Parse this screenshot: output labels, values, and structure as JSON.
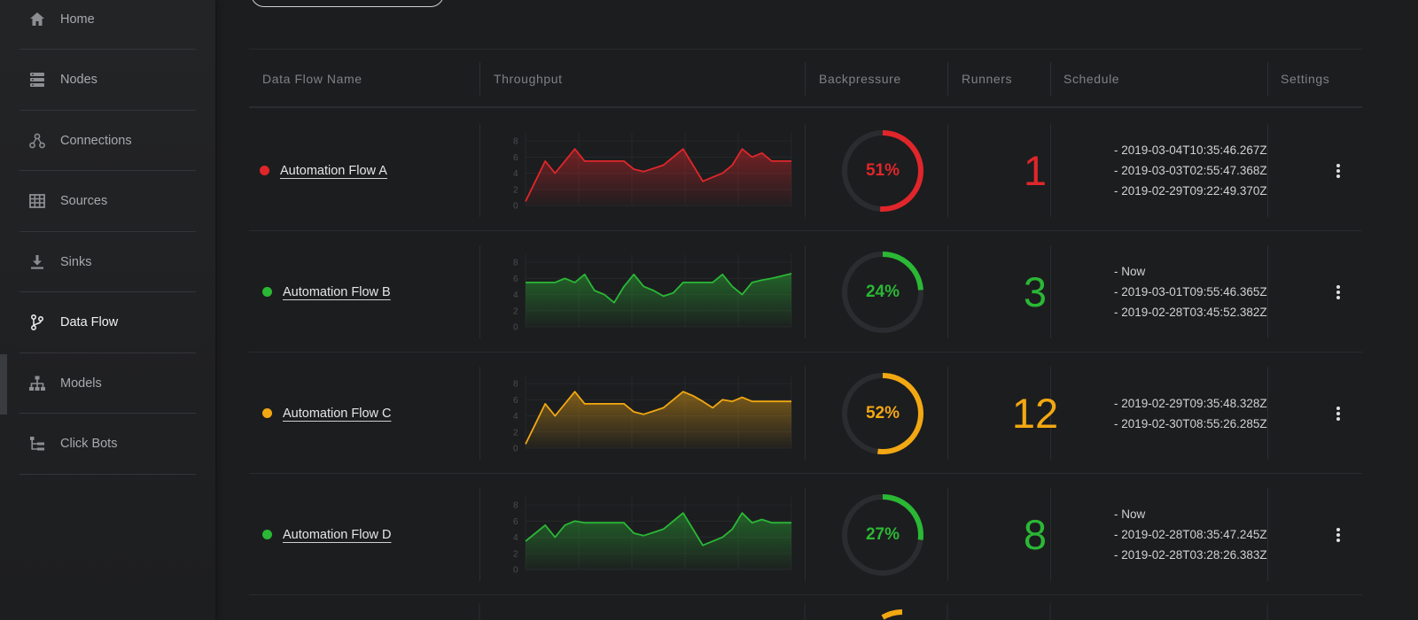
{
  "sidebar": {
    "items": [
      {
        "label": "Home",
        "icon": "home-icon"
      },
      {
        "label": "Nodes",
        "icon": "server-icon"
      },
      {
        "label": "Connections",
        "icon": "connections-icon"
      },
      {
        "label": "Sources",
        "icon": "table-icon"
      },
      {
        "label": "Sinks",
        "icon": "download-icon"
      },
      {
        "label": "Data Flow",
        "icon": "branch-icon"
      },
      {
        "label": "Models",
        "icon": "hierarchy-icon"
      },
      {
        "label": "Click Bots",
        "icon": "tree-list-icon"
      }
    ],
    "active": "Data Flow"
  },
  "table": {
    "headers": {
      "name": "Data Flow Name",
      "throughput": "Throughput",
      "backpressure": "Backpressure",
      "runners": "Runners",
      "schedule": "Schedule",
      "settings": "Settings"
    },
    "y_ticks": [
      "8",
      "6",
      "4",
      "2",
      "0"
    ],
    "rows": [
      {
        "name": "Automation Flow A",
        "color": "#e0262a",
        "backpressure": "51%",
        "backpressure_value": 51,
        "runners": "1",
        "schedule": [
          "- 2019-03-04T10:35:46.267Z",
          "- 2019-03-03T02:55:47.368Z",
          "- 2019-02-29T09:22:49.370Z"
        ],
        "throughput": [
          0.5,
          3,
          5.5,
          4,
          5.5,
          7,
          5.5,
          5.5,
          5.5,
          5.5,
          5.5,
          4.5,
          4.2,
          4.6,
          5,
          6,
          7,
          5,
          3,
          3.5,
          4,
          5,
          7,
          6,
          6.5,
          5.5,
          5.5,
          5.5
        ]
      },
      {
        "name": "Automation Flow B",
        "color": "#2ab835",
        "backpressure": "24%",
        "backpressure_value": 24,
        "runners": "3",
        "schedule": [
          "- Now",
          "- 2019-03-01T09:55:46.365Z",
          "- 2019-02-28T03:45:52.382Z"
        ],
        "throughput": [
          5.5,
          5.5,
          5.5,
          5.5,
          6,
          5.5,
          6.5,
          4.5,
          4,
          3,
          5,
          6.5,
          5,
          4.5,
          3.8,
          4.2,
          5.5,
          5.5,
          5.5,
          5.5,
          6.5,
          5,
          4,
          5.5,
          5.8,
          6,
          6.3,
          6.6
        ]
      },
      {
        "name": "Automation Flow C",
        "color": "#f2a812",
        "backpressure": "52%",
        "backpressure_value": 52,
        "runners": "12",
        "schedule": [
          "- 2019-02-29T09:35:48.328Z",
          "- 2019-02-30T08:55:26.285Z"
        ],
        "throughput": [
          0.5,
          3,
          5.5,
          4,
          5.5,
          7,
          5.5,
          5.5,
          5.5,
          5.5,
          5.5,
          4.5,
          4.2,
          4.6,
          5,
          6,
          7,
          6.5,
          5.8,
          5,
          6,
          5.8,
          6.3,
          5.8,
          5.8,
          5.8,
          5.8,
          5.8
        ]
      },
      {
        "name": "Automation Flow D",
        "color": "#2ab835",
        "backpressure": "27%",
        "backpressure_value": 27,
        "runners": "8",
        "schedule": [
          "- Now",
          "- 2019-02-28T08:35:47.245Z",
          "- 2019-02-28T03:28:26.383Z"
        ],
        "throughput": [
          3.5,
          4.5,
          5.5,
          4,
          5.5,
          6,
          5.8,
          5.8,
          5.8,
          5.8,
          5.8,
          4.5,
          4.2,
          4.6,
          5,
          6,
          7,
          5,
          3,
          3.5,
          4,
          5,
          7,
          5.8,
          6.2,
          5.8,
          5.8,
          5.8
        ]
      }
    ]
  }
}
